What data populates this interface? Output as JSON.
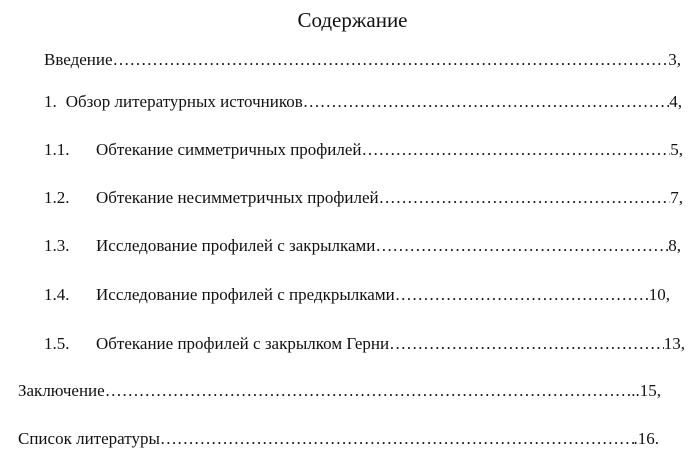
{
  "title": "Содержание",
  "entries": [
    {
      "number": "",
      "text": "Введение",
      "page": "3,"
    },
    {
      "number": "1.",
      "text": "Обзор литературных источников",
      "page": "4,"
    },
    {
      "number": "1.1.",
      "text": "Обтекание симметричных профилей",
      "page": "5,"
    },
    {
      "number": "1.2.",
      "text": "Обтекание несимметричных профилей",
      "page": "7,"
    },
    {
      "number": "1.3.",
      "text": "Исследование профилей с закрылками",
      "page": "8,"
    },
    {
      "number": "1.4.",
      "text": "Исследование профилей с предкрылками",
      "page": "10,"
    },
    {
      "number": "1.5.",
      "text": "Обтекание профилей с закрылком Герни",
      "page": "13,"
    },
    {
      "number": "",
      "text": "Заключение",
      "page": "..15,"
    },
    {
      "number": "",
      "text": "Список литературы",
      "page": ".16."
    }
  ]
}
